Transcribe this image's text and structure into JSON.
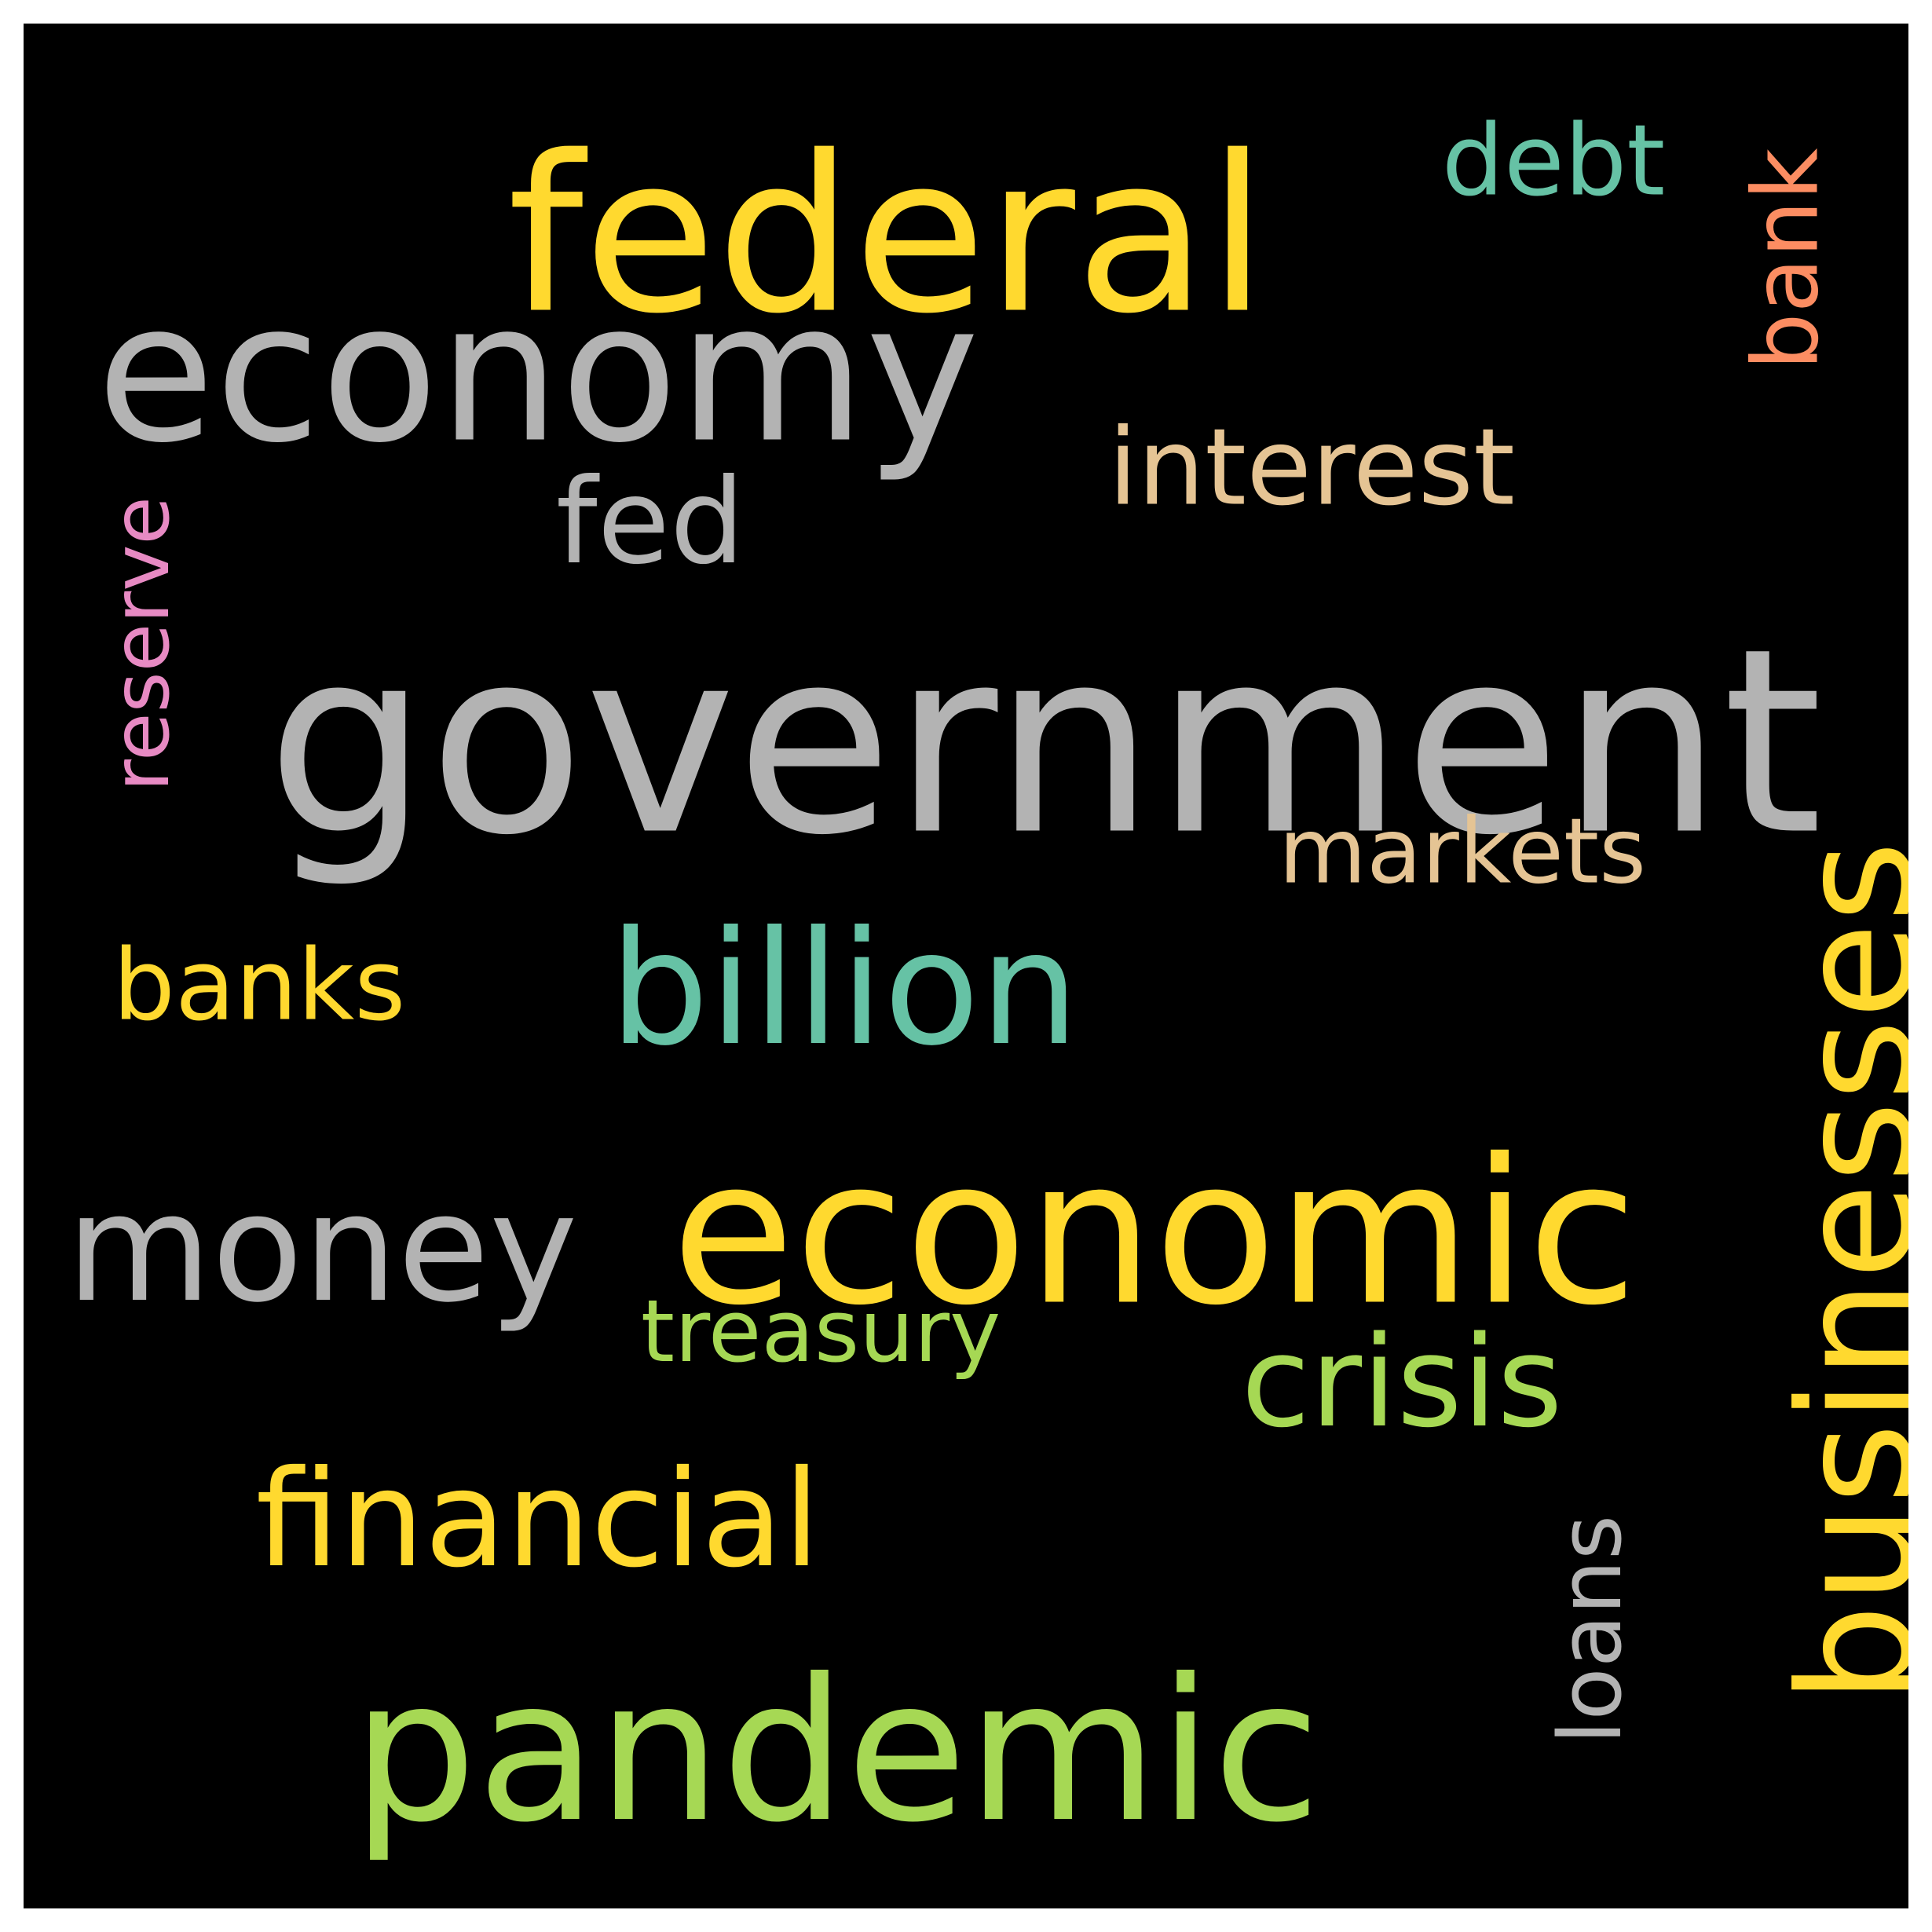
{
  "words": {
    "government": {
      "text": "government",
      "color": "#b3b3b3"
    },
    "federal": {
      "text": "federal",
      "color": "#ffd92f"
    },
    "economy": {
      "text": "economy",
      "color": "#b3b3b3"
    },
    "economic": {
      "text": "economic",
      "color": "#ffd92f"
    },
    "pandemic": {
      "text": "pandemic",
      "color": "#a6d854"
    },
    "businesses": {
      "text": "businesses",
      "color": "#ffd92f"
    },
    "billion": {
      "text": "billion",
      "color": "#66c2a5"
    },
    "money": {
      "text": "money",
      "color": "#b3b3b3"
    },
    "financial": {
      "text": "financial",
      "color": "#ffd92f"
    },
    "crisis": {
      "text": "crisis",
      "color": "#a6d854"
    },
    "fed": {
      "text": "fed",
      "color": "#b3b3b3"
    },
    "interest": {
      "text": "interest",
      "color": "#e5c494"
    },
    "markets": {
      "text": "markets",
      "color": "#e5c494"
    },
    "debt": {
      "text": "debt",
      "color": "#66c2a5"
    },
    "banks": {
      "text": "banks",
      "color": "#ffd92f"
    },
    "treasury": {
      "text": "treasury",
      "color": "#a6d854"
    },
    "bank": {
      "text": "bank",
      "color": "#fc8d62"
    },
    "reserve": {
      "text": "reserve",
      "color": "#e78ac3"
    },
    "loans": {
      "text": "loans",
      "color": "#b3b3b3"
    }
  }
}
